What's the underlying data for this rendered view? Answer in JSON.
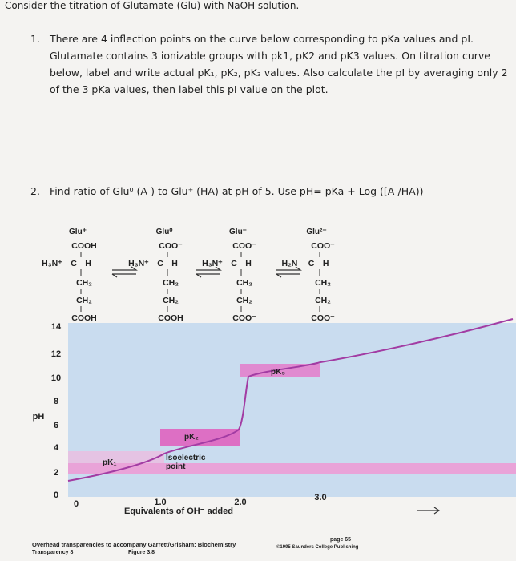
{
  "header": {
    "title": "Consider the titration of Glutamate (Glu) with NaOH solution."
  },
  "questions": [
    {
      "number": "1.",
      "text": "There are 4 inflection points on the curve below corresponding to pKa values and pI. Glutamate contains 3 ionizable groups with pk1, pK2 and pK3 values. On titration curve below, label and write actual pK₁, pK₂, pK₃ values. Also calculate the pI by averaging only 2 of the 3 pKa values, then label this pI value on the plot."
    },
    {
      "number": "2.",
      "text": "Find ratio of Glu⁰ (A-) to Glu⁺ (HA) at pH of 5. Use pH= pKa + Log ([A-/HA))"
    }
  ],
  "figure": {
    "structures": [
      {
        "name": "Glu⁺",
        "lines": [
          "COOH",
          "H₃N⁺—C—H",
          "CH₂",
          "CH₂",
          "COOH"
        ]
      },
      {
        "name": "Glu⁰",
        "lines": [
          "COO⁻",
          "H₃N⁺—C—H",
          "CH₂",
          "CH₂",
          "COOH"
        ]
      },
      {
        "name": "Glu⁻",
        "lines": [
          "COO⁻",
          "H₃N⁺—C—H",
          "CH₂",
          "CH₂",
          "COO⁻"
        ]
      },
      {
        "name": "Glu²⁻",
        "lines": [
          "COO⁻",
          "H₂N —C—H",
          "CH₂",
          "CH₂",
          "COO⁻"
        ]
      }
    ],
    "ylabel": "pH",
    "yticks": [
      "14",
      "12",
      "10",
      "8",
      "6",
      "4",
      "2",
      "0"
    ],
    "xticks": [
      "0",
      "1.0",
      "2.0",
      "3.0"
    ],
    "xlabel": "Equivalents of OH⁻ added",
    "labels": {
      "pk1": "pK₁",
      "pk2": "pK₂",
      "pk3": "pK₃",
      "pi": "Isoelectric point"
    },
    "footer": {
      "credit": "Overhead transparencies to accompany Garrett/Grisham: Biochemistry",
      "transparency": "Transparency 8",
      "figure": "Figure 3.8",
      "page": "page 65",
      "copyright": "©1995 Saunders College Publishing"
    }
  }
}
